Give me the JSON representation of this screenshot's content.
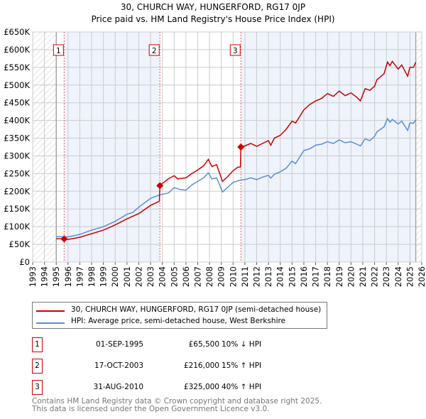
{
  "title": "30, CHURCH WAY, HUNGERFORD, RG17 0JP",
  "subtitle": "Price paid vs. HM Land Registry's House Price Index (HPI)",
  "chart_data": {
    "type": "line",
    "title": "30, CHURCH WAY, HUNGERFORD, RG17 0JP",
    "subtitle": "Price paid vs. HM Land Registry's House Price Index (HPI)",
    "xlim": [
      1993,
      2026
    ],
    "ylim": [
      0,
      650000
    ],
    "y_ticks": [
      "£0",
      "£50K",
      "£100K",
      "£150K",
      "£200K",
      "£250K",
      "£300K",
      "£350K",
      "£400K",
      "£450K",
      "£500K",
      "£550K",
      "£600K",
      "£650K"
    ],
    "x_ticks": [
      "1993",
      "1994",
      "1995",
      "1996",
      "1997",
      "1998",
      "1999",
      "2000",
      "2001",
      "2002",
      "2003",
      "2004",
      "2005",
      "2006",
      "2007",
      "2008",
      "2009",
      "2010",
      "2011",
      "2012",
      "2013",
      "2014",
      "2015",
      "2016",
      "2017",
      "2018",
      "2019",
      "2020",
      "2021",
      "2022",
      "2023",
      "2024",
      "2025",
      "2026"
    ],
    "grid": true,
    "legend_position": "below",
    "series": [
      {
        "name": "30, CHURCH WAY, HUNGERFORD, RG17 0JP (semi-detached house)",
        "color": "#cc0000",
        "x": [
          1995.0,
          1995.67,
          1996,
          1997,
          1998,
          1999,
          2000,
          2001,
          2002,
          2003,
          2003.75,
          2003.79,
          2004,
          2004.5,
          2005,
          2005.3,
          2006,
          2006.5,
          2007,
          2007.5,
          2007.9,
          2008.2,
          2008.6,
          2009.1,
          2009.5,
          2010,
          2010.4,
          2010.62,
          2010.66,
          2011,
          2011.5,
          2012,
          2012.5,
          2013,
          2013.2,
          2013.5,
          2014,
          2014.5,
          2015,
          2015.3,
          2016,
          2016.5,
          2017,
          2017.5,
          2018,
          2018.5,
          2019,
          2019.5,
          2020,
          2020.5,
          2020.8,
          2021.2,
          2021.6,
          2022,
          2022.2,
          2022.8,
          2023.1,
          2023.3,
          2023.5,
          2024,
          2024.3,
          2024.8,
          2025,
          2025.3,
          2025.5
        ],
        "y": [
          66000,
          65500,
          64000,
          70000,
          80000,
          90000,
          105000,
          122000,
          137000,
          160000,
          172000,
          216000,
          222000,
          235000,
          244000,
          235000,
          238000,
          250000,
          260000,
          272000,
          290000,
          270000,
          275000,
          228000,
          240000,
          258000,
          268000,
          268000,
          325000,
          328000,
          335000,
          327000,
          335000,
          343000,
          330000,
          350000,
          358000,
          375000,
          398000,
          393000,
          430000,
          445000,
          455000,
          462000,
          476000,
          468000,
          483000,
          470000,
          478000,
          465000,
          455000,
          490000,
          485000,
          497000,
          515000,
          532000,
          565000,
          555000,
          567000,
          545000,
          557000,
          525000,
          550000,
          550000,
          565000
        ]
      },
      {
        "name": "HPI: Average price, semi-detached house, West Berkshire",
        "color": "#5b8fd4",
        "x": [
          1995.0,
          1996,
          1997,
          1998,
          1999,
          2000,
          2001,
          2001.5,
          2002,
          2003,
          2003.8,
          2004.5,
          2005,
          2005.5,
          2006,
          2006.5,
          2007,
          2007.5,
          2007.9,
          2008.2,
          2008.6,
          2009.1,
          2009.5,
          2010,
          2010.66,
          2011,
          2011.5,
          2012,
          2012.5,
          2013,
          2013.2,
          2013.5,
          2014,
          2014.5,
          2015,
          2015.3,
          2016,
          2016.5,
          2017,
          2017.5,
          2018,
          2018.5,
          2019,
          2019.5,
          2020,
          2020.5,
          2020.8,
          2021.2,
          2021.6,
          2022,
          2022.2,
          2022.8,
          2023.1,
          2023.3,
          2023.5,
          2024,
          2024.3,
          2024.8,
          2025,
          2025.3,
          2025.5
        ],
        "y": [
          72000,
          71000,
          78000,
          90000,
          100000,
          115000,
          135000,
          140000,
          155000,
          180000,
          190000,
          195000,
          210000,
          205000,
          203000,
          218000,
          228000,
          238000,
          252000,
          235000,
          238000,
          198000,
          210000,
          225000,
          232000,
          233000,
          238000,
          233000,
          240000,
          245000,
          237000,
          248000,
          255000,
          265000,
          285000,
          278000,
          315000,
          320000,
          330000,
          333000,
          340000,
          335000,
          345000,
          337000,
          340000,
          333000,
          328000,
          348000,
          343000,
          355000,
          368000,
          382000,
          405000,
          395000,
          403000,
          390000,
          398000,
          372000,
          393000,
          392000,
          402000
        ]
      }
    ],
    "sales": [
      {
        "label": "1",
        "x": 1995.67,
        "y": 65500
      },
      {
        "label": "2",
        "x": 2003.79,
        "y": 216000
      },
      {
        "label": "3",
        "x": 2010.66,
        "y": 325000
      }
    ]
  },
  "legend": [
    {
      "label": "30, CHURCH WAY, HUNGERFORD, RG17 0JP (semi-detached house)",
      "color": "#cc0000"
    },
    {
      "label": "HPI: Average price, semi-detached house, West Berkshire",
      "color": "#5b8fd4"
    }
  ],
  "transactions": [
    {
      "num": "1",
      "date": "01-SEP-1995",
      "price": "£65,500",
      "hpi": "10% ↓ HPI"
    },
    {
      "num": "2",
      "date": "17-OCT-2003",
      "price": "£216,000",
      "hpi": "15% ↑ HPI"
    },
    {
      "num": "3",
      "date": "31-AUG-2010",
      "price": "£325,000",
      "hpi": "40% ↑ HPI"
    }
  ],
  "footer": [
    "Contains HM Land Registry data © Crown copyright and database right 2025.",
    "This data is licensed under the Open Government Licence v3.0."
  ]
}
